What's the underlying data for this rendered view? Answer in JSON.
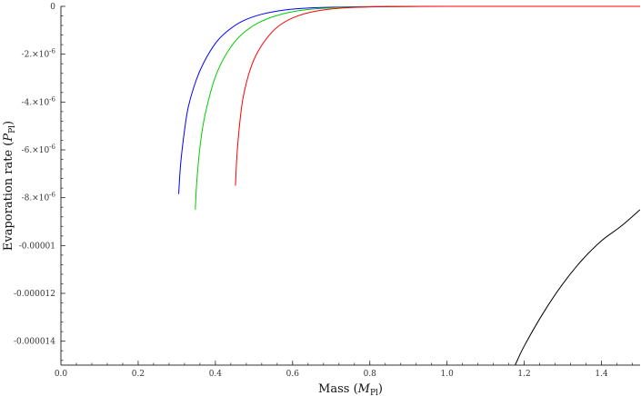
{
  "chart_data": {
    "type": "line",
    "title": "",
    "xlabel": "Mass",
    "xlabel_sub": "Pl",
    "xlabel_sym": "M",
    "ylabel": "Evaporation rate",
    "ylabel_sub": "Pl",
    "ylabel_sym": "P",
    "xlim": [
      0,
      1.5
    ],
    "ylim": [
      -1.5e-05,
      0
    ],
    "grid": false,
    "legend": "none",
    "x_ticks": [
      {
        "value": 0.0,
        "label": "0.0"
      },
      {
        "value": 0.2,
        "label": "0.2"
      },
      {
        "value": 0.4,
        "label": "0.4"
      },
      {
        "value": 0.6,
        "label": "0.6"
      },
      {
        "value": 0.8,
        "label": "0.8"
      },
      {
        "value": 1.0,
        "label": "1.0"
      },
      {
        "value": 1.2,
        "label": "1.2"
      },
      {
        "value": 1.4,
        "label": "1.4"
      }
    ],
    "y_ticks": [
      {
        "value": 0,
        "label": "0"
      },
      {
        "value": -2e-06,
        "label": "-2.×10",
        "exp": "-6"
      },
      {
        "value": -4e-06,
        "label": "-4.×10",
        "exp": "-6"
      },
      {
        "value": -6e-06,
        "label": "-6.×10",
        "exp": "-6"
      },
      {
        "value": -8e-06,
        "label": "-8.×10",
        "exp": "-6"
      },
      {
        "value": -1e-05,
        "label": "-0.00001"
      },
      {
        "value": -1.2e-05,
        "label": "-0.000012"
      },
      {
        "value": -1.4e-05,
        "label": "-0.000014"
      }
    ],
    "series": [
      {
        "color": "#0000ff",
        "x": [
          0.305,
          0.31,
          0.32,
          0.33,
          0.35,
          0.37,
          0.4,
          0.43,
          0.47,
          0.52,
          0.58,
          0.65,
          0.75,
          0.85,
          1.0,
          1.2,
          1.5
        ],
        "y": [
          -7.85e-06,
          -6.6e-06,
          -5.2e-06,
          -4.2e-06,
          -3.1e-06,
          -2.35e-06,
          -1.55e-06,
          -1.05e-06,
          -6.2e-07,
          -3.3e-07,
          -1.5e-07,
          -6e-08,
          -2e-08,
          -5e-09,
          0,
          0,
          0
        ]
      },
      {
        "color": "#00cc00",
        "x": [
          0.348,
          0.352,
          0.36,
          0.37,
          0.39,
          0.41,
          0.44,
          0.47,
          0.51,
          0.56,
          0.62,
          0.7,
          0.8,
          0.9,
          1.0,
          1.2,
          1.5
        ],
        "y": [
          -8.5e-06,
          -7.3e-06,
          -5.9e-06,
          -4.8e-06,
          -3.45e-06,
          -2.55e-06,
          -1.7e-06,
          -1.15e-06,
          -7e-07,
          -3.8e-07,
          -1.7e-07,
          -6e-08,
          -2e-08,
          -5e-09,
          0,
          0,
          0
        ]
      },
      {
        "color": "#ff0000",
        "x": [
          0.452,
          0.456,
          0.463,
          0.472,
          0.49,
          0.51,
          0.54,
          0.57,
          0.61,
          0.66,
          0.72,
          0.8,
          0.9,
          1.0,
          1.2,
          1.5
        ],
        "y": [
          -7.5e-06,
          -6.2e-06,
          -4.9e-06,
          -3.8e-06,
          -2.65e-06,
          -1.9e-06,
          -1.2e-06,
          -7.5e-07,
          -4.2e-07,
          -2e-07,
          -8e-08,
          -2.5e-08,
          -5e-09,
          0,
          0,
          0
        ]
      },
      {
        "color": "#000000",
        "x": [
          1.175,
          1.2,
          1.25,
          1.3,
          1.35,
          1.4,
          1.45,
          1.5
        ],
        "y": [
          -1.505e-05,
          -1.42e-05,
          -1.28e-05,
          -1.16e-05,
          -1.06e-05,
          -9.8e-06,
          -9.2e-06,
          -8.5e-06
        ]
      }
    ]
  }
}
